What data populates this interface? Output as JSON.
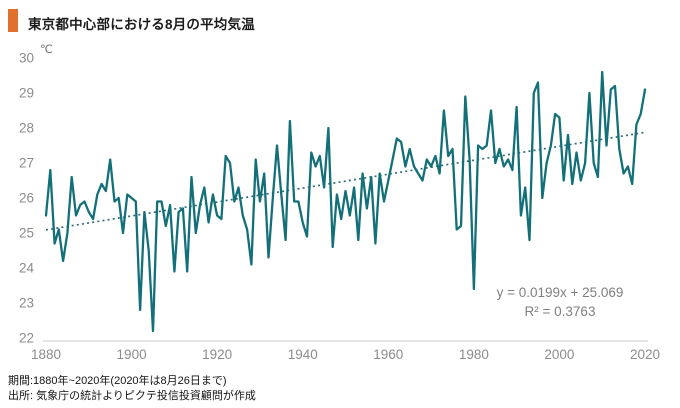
{
  "header": {
    "title": "東京都中心部における8月の平均気温",
    "accent_color": "#e0712c"
  },
  "chart_data": {
    "type": "line",
    "title": "東京都中心部における8月の平均気温",
    "unit_label": "℃",
    "x_first": 1880,
    "x_last": 2020,
    "x_step": 1,
    "values": [
      25.5,
      26.8,
      24.7,
      25.1,
      24.2,
      25.0,
      26.6,
      25.5,
      25.8,
      25.9,
      25.6,
      25.4,
      26.1,
      26.4,
      26.2,
      27.1,
      25.9,
      26.0,
      25.0,
      26.1,
      26.0,
      25.9,
      22.8,
      25.6,
      24.5,
      22.2,
      25.9,
      25.9,
      25.2,
      25.8,
      23.9,
      25.6,
      25.7,
      23.9,
      26.6,
      25.0,
      25.8,
      26.3,
      25.3,
      26.1,
      25.5,
      25.4,
      27.2,
      27.0,
      25.9,
      26.3,
      25.5,
      25.1,
      24.1,
      27.1,
      25.9,
      26.7,
      24.3,
      26.0,
      27.5,
      26.1,
      24.8,
      28.2,
      25.9,
      25.9,
      25.3,
      24.9,
      27.3,
      26.9,
      27.2,
      26.3,
      28.0,
      24.6,
      26.1,
      25.4,
      26.2,
      25.5,
      26.3,
      24.8,
      26.7,
      25.7,
      26.6,
      24.7,
      26.7,
      25.9,
      26.5,
      27.1,
      27.7,
      27.6,
      26.9,
      27.4,
      26.9,
      26.7,
      26.5,
      27.1,
      26.9,
      27.2,
      26.7,
      28.5,
      27.2,
      27.4,
      25.1,
      25.2,
      28.9,
      27.1,
      23.4,
      27.5,
      27.4,
      27.5,
      28.5,
      27.0,
      27.4,
      26.9,
      27.1,
      26.8,
      28.6,
      25.5,
      26.3,
      24.8,
      29.0,
      29.3,
      26.0,
      27.0,
      27.5,
      28.4,
      28.3,
      26.5,
      27.8,
      26.4,
      27.3,
      26.5,
      27.0,
      29.0,
      27.0,
      26.6,
      29.6,
      27.5,
      29.1,
      29.2,
      27.4,
      26.7,
      26.9,
      26.4,
      28.1,
      28.4,
      29.1
    ],
    "ylim": [
      22,
      30
    ],
    "xlim": [
      1880,
      2020
    ],
    "y_ticks": [
      30,
      29,
      28,
      27,
      26,
      25,
      24,
      23,
      22
    ],
    "x_ticks": [
      1880,
      1900,
      1920,
      1940,
      1960,
      1980,
      2000,
      2020
    ],
    "grid": false,
    "legend_position": "none",
    "series_color": "#147078",
    "axis_color": "#d6d6d6",
    "tick_label_color": "#8c8c8c",
    "trendline": {
      "slope": 0.0199,
      "intercept": 25.069,
      "style": "dotted",
      "color": "#2f6f76",
      "equation_label": "y = 0.0199x + 25.069",
      "r2_label": "R² = 0.3763"
    }
  },
  "annotation": {
    "equation": "y = 0.0199x + 25.069",
    "r_squared": "R² = 0.3763"
  },
  "footer": {
    "line1": "期間:1880年~2020年(2020年は8月26日まで)",
    "line2": "出所: 気象庁の統計よりピクテ投信投資顧問が作成"
  }
}
